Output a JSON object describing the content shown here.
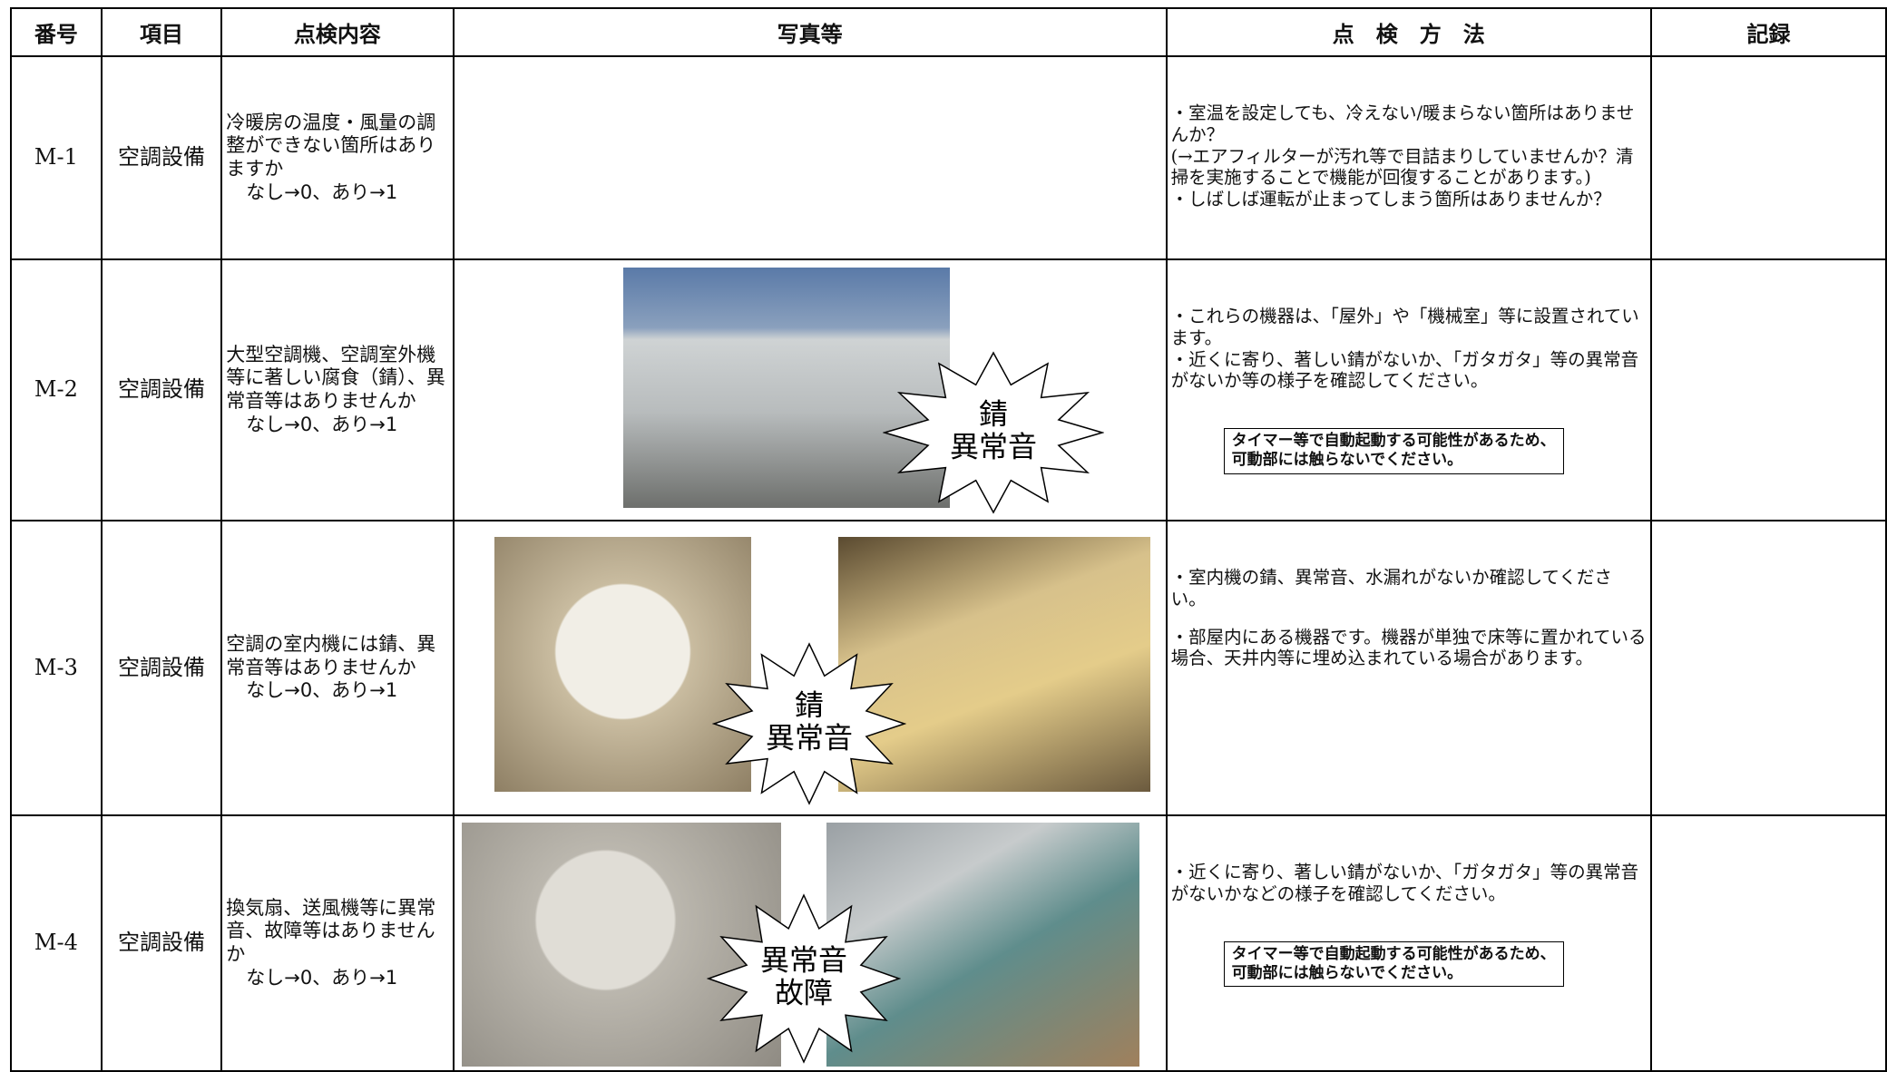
{
  "header": {
    "columns": [
      "番号",
      "項目",
      "点検内容",
      "写真等",
      "点　検　方　法",
      "記録"
    ]
  },
  "rows": [
    {
      "id": "M-1",
      "item": "空調設備",
      "content": "冷暖房の温度・風量の調整ができない箇所はありますか",
      "criteria": "なし→0、あり→1",
      "method": [
        "・室温を設定しても、冷えない/暖まらない箇所はありませんか？",
        "(→エアフィルターが汚れ等で目詰まりしていませんか？清掃を実施することで機能が回復することがあります。)",
        "・しばしば運転が止まってしまう箇所はありませんか？"
      ]
    },
    {
      "id": "M-2",
      "item": "空調設備",
      "content": "大型空調機、空調室外機等に著しい腐食（錆）、異常音等はありませんか",
      "criteria": "なし→0、あり→1",
      "method": [
        "・これらの機器は、「屋外」や「機械室」等に設置されています。",
        "・近くに寄り、著しい錆がないか、「ガタガタ」等の異常音がないか等の様子を確認してください。"
      ],
      "notice": [
        "タイマー等で自動起動する可能性があるため、",
        "可動部には触らないでください。"
      ],
      "burst": [
        "錆",
        "異常音"
      ]
    },
    {
      "id": "M-3",
      "item": "空調設備",
      "content": "空調の室内機には錆、異常音等はありませんか",
      "criteria": "なし→0、あり→1",
      "method": [
        "・室内機の錆、異常音、水漏れがないか確認してください。",
        "・部屋内にある機器です。機器が単独で床等に置かれている場合、天井内等に埋め込まれている場合があります。"
      ],
      "burst": [
        "錆",
        "異常音"
      ]
    },
    {
      "id": "M-4",
      "item": "空調設備",
      "content": "換気扇、送風機等に異常音、故障等はありませんか",
      "criteria": "なし→0、あり→1",
      "method": [
        "・近くに寄り、著しい錆がないか、「ガタガタ」等の異常音がないかなどの様子を確認してください。"
      ],
      "notice": [
        "タイマー等で自動起動する可能性があるため、",
        "可動部には触らないでください。"
      ],
      "burst": [
        "異常音",
        "故障"
      ]
    }
  ]
}
